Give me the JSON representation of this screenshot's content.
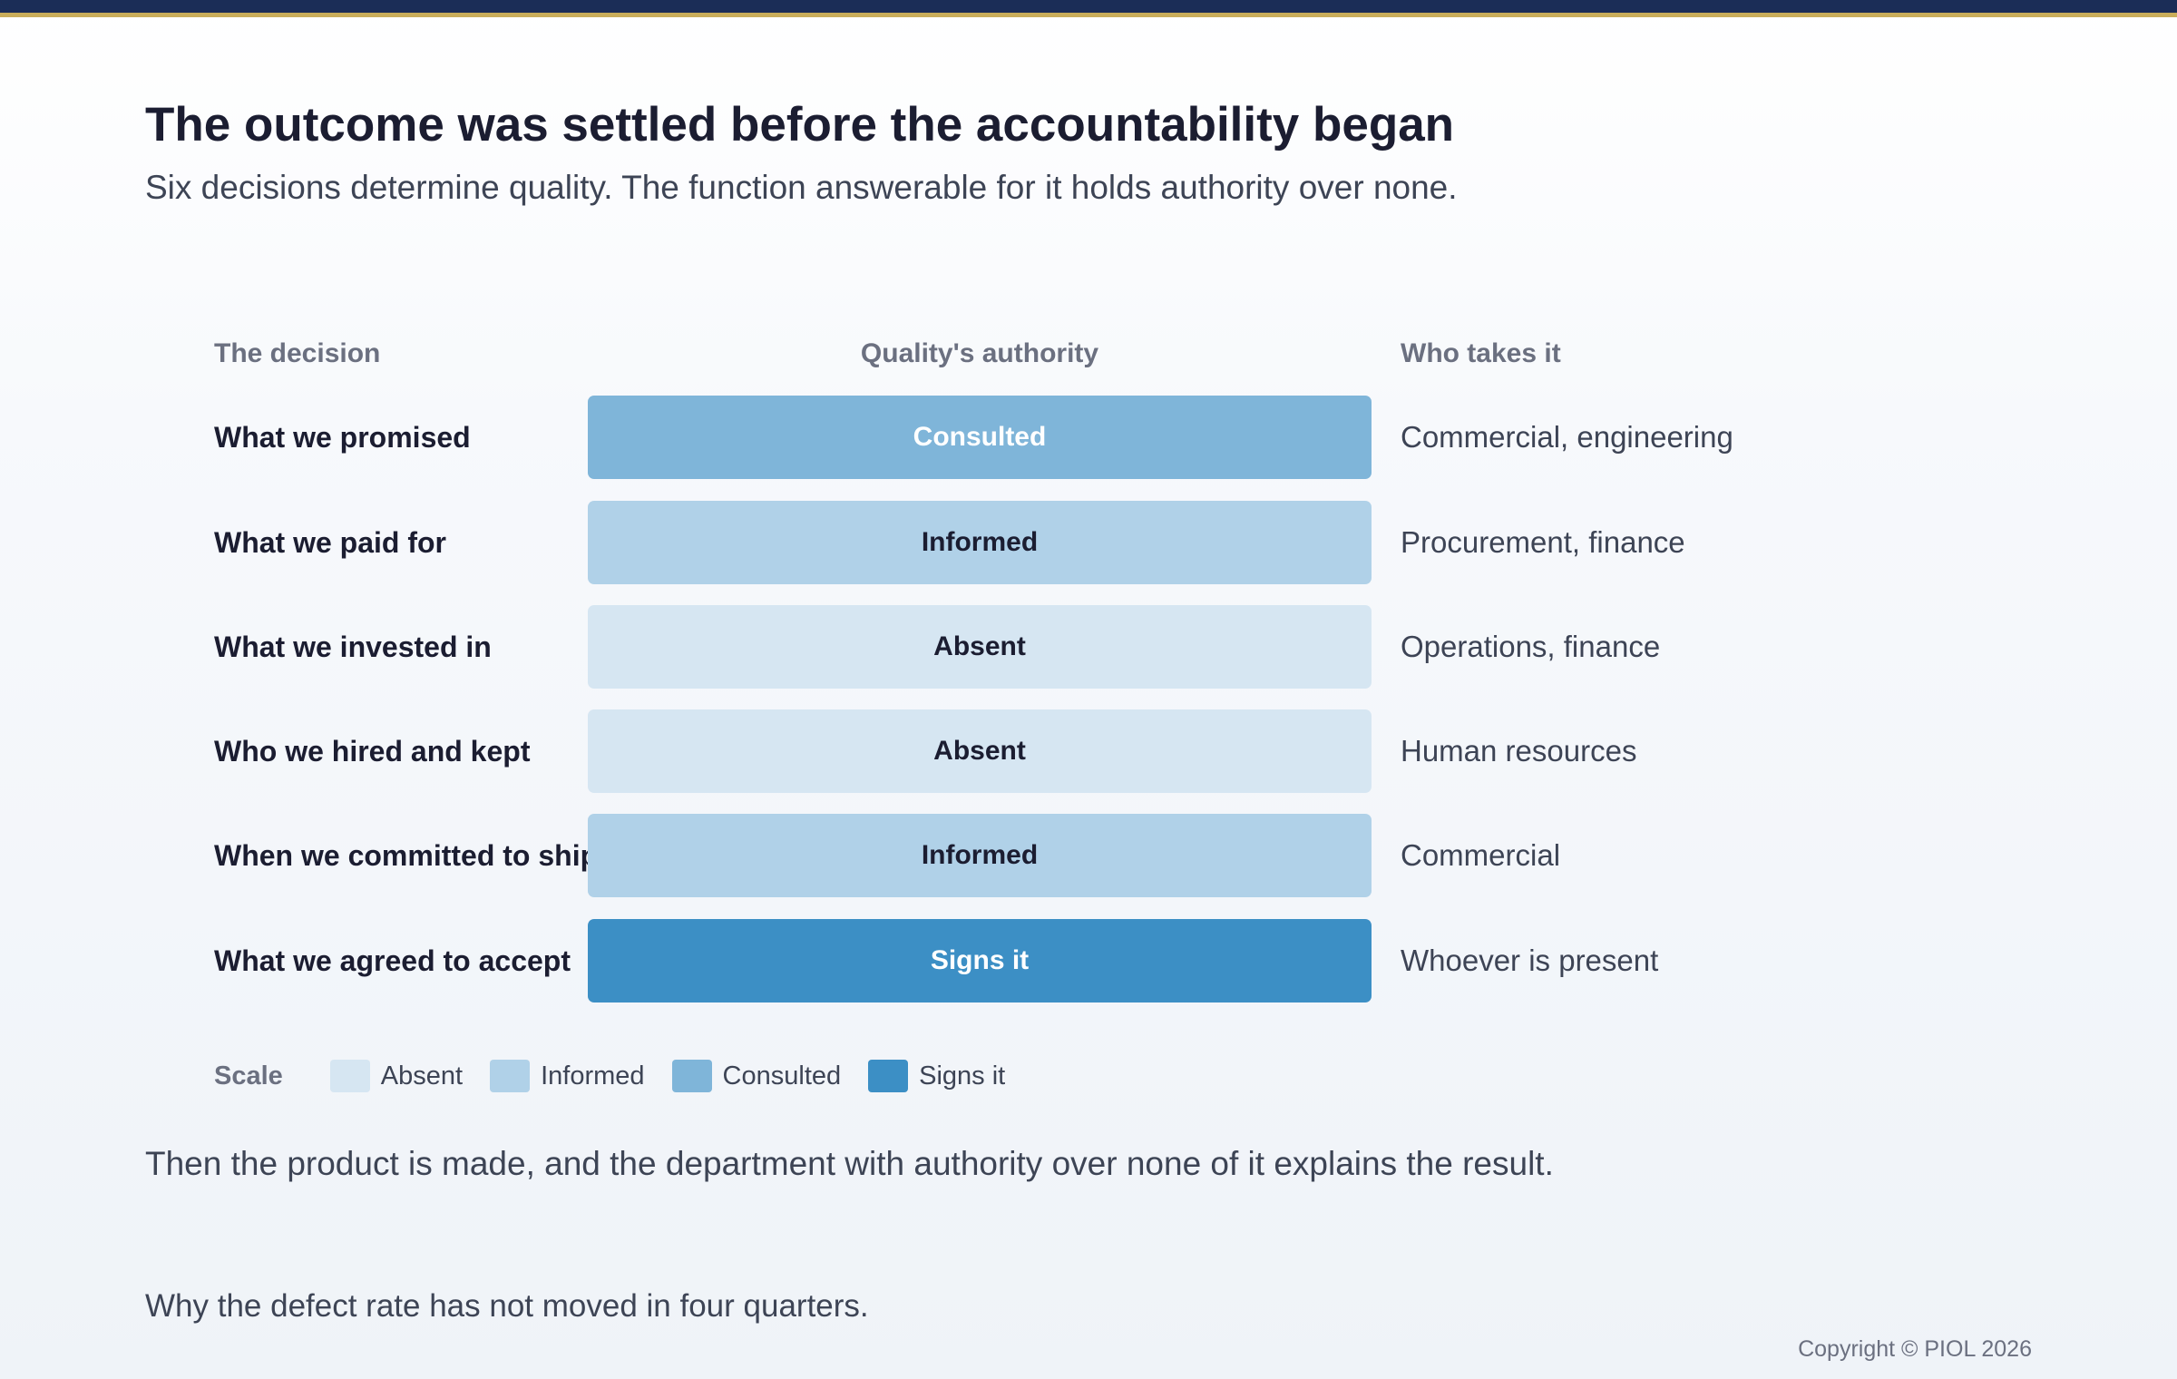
{
  "header": {
    "title": "The outcome was settled before the accountability began",
    "subtitle": "Six decisions determine quality. The function answerable for it holds authority over none."
  },
  "table": {
    "columns": {
      "decision": "The decision",
      "authority": "Quality's authority",
      "who": "Who takes it"
    },
    "rows": [
      {
        "decision": "What we promised",
        "authority": "Consulted",
        "level": "consulted",
        "who": "Commercial, engineering"
      },
      {
        "decision": "What we paid for",
        "authority": "Informed",
        "level": "informed",
        "who": "Procurement, finance"
      },
      {
        "decision": "What we invested in",
        "authority": "Absent",
        "level": "absent",
        "who": "Operations, finance"
      },
      {
        "decision": "Who we hired and kept",
        "authority": "Absent",
        "level": "absent",
        "who": "Human resources"
      },
      {
        "decision": "When we committed to ship",
        "authority": "Informed",
        "level": "informed",
        "who": "Commercial"
      },
      {
        "decision": "What we agreed to accept",
        "authority": "Signs it",
        "level": "signs",
        "who": "Whoever is present"
      }
    ]
  },
  "legend": {
    "label": "Scale",
    "items": [
      {
        "label": "Absent",
        "level": "absent",
        "color": "#d6e6f2"
      },
      {
        "label": "Informed",
        "level": "informed",
        "color": "#b0d1e8"
      },
      {
        "label": "Consulted",
        "level": "consulted",
        "color": "#7fb5d9"
      },
      {
        "label": "Signs it",
        "level": "signs",
        "color": "#3c8fc5"
      }
    ]
  },
  "conclusion": "Then the product is made, and the department with authority over none of it explains the result.",
  "footnote": "Why the defect rate has not moved in four quarters.",
  "copyright": "Copyright © PIOL 2026",
  "colors": {
    "accent_bar": "#1b2d57",
    "accent_stripe": "#c9ad5a"
  }
}
